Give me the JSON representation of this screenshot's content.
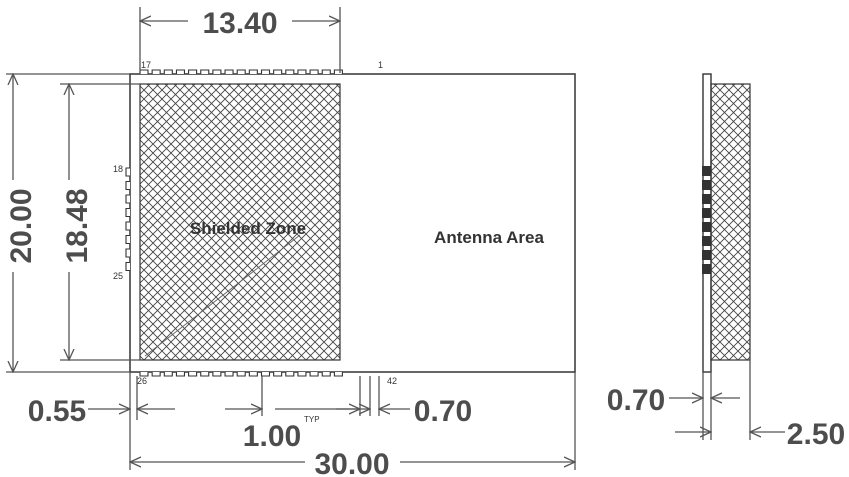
{
  "colors": {
    "line": "#555555",
    "outline": "#333333",
    "text": "#4d4d4d",
    "hatch": "#444444",
    "pad": "#333333"
  },
  "dimensions": {
    "width_shield": "13.40",
    "height_total": "20.00",
    "height_shield": "18.48",
    "edge_offset": "0.55",
    "pad_pitch": "1.00",
    "pad_pitch_note": "TYP",
    "pad_width": "0.70",
    "width_total": "30.00",
    "side_pad_width": "0.70",
    "side_thickness": "2.50"
  },
  "labels": {
    "shielded_zone": "Shielded Zone",
    "antenna_area": "Antenna Area"
  },
  "pins": {
    "top_left": "17",
    "top_right": "1",
    "left_top": "18",
    "left_bottom": "25",
    "bottom_left": "26",
    "bottom_right": "42"
  }
}
